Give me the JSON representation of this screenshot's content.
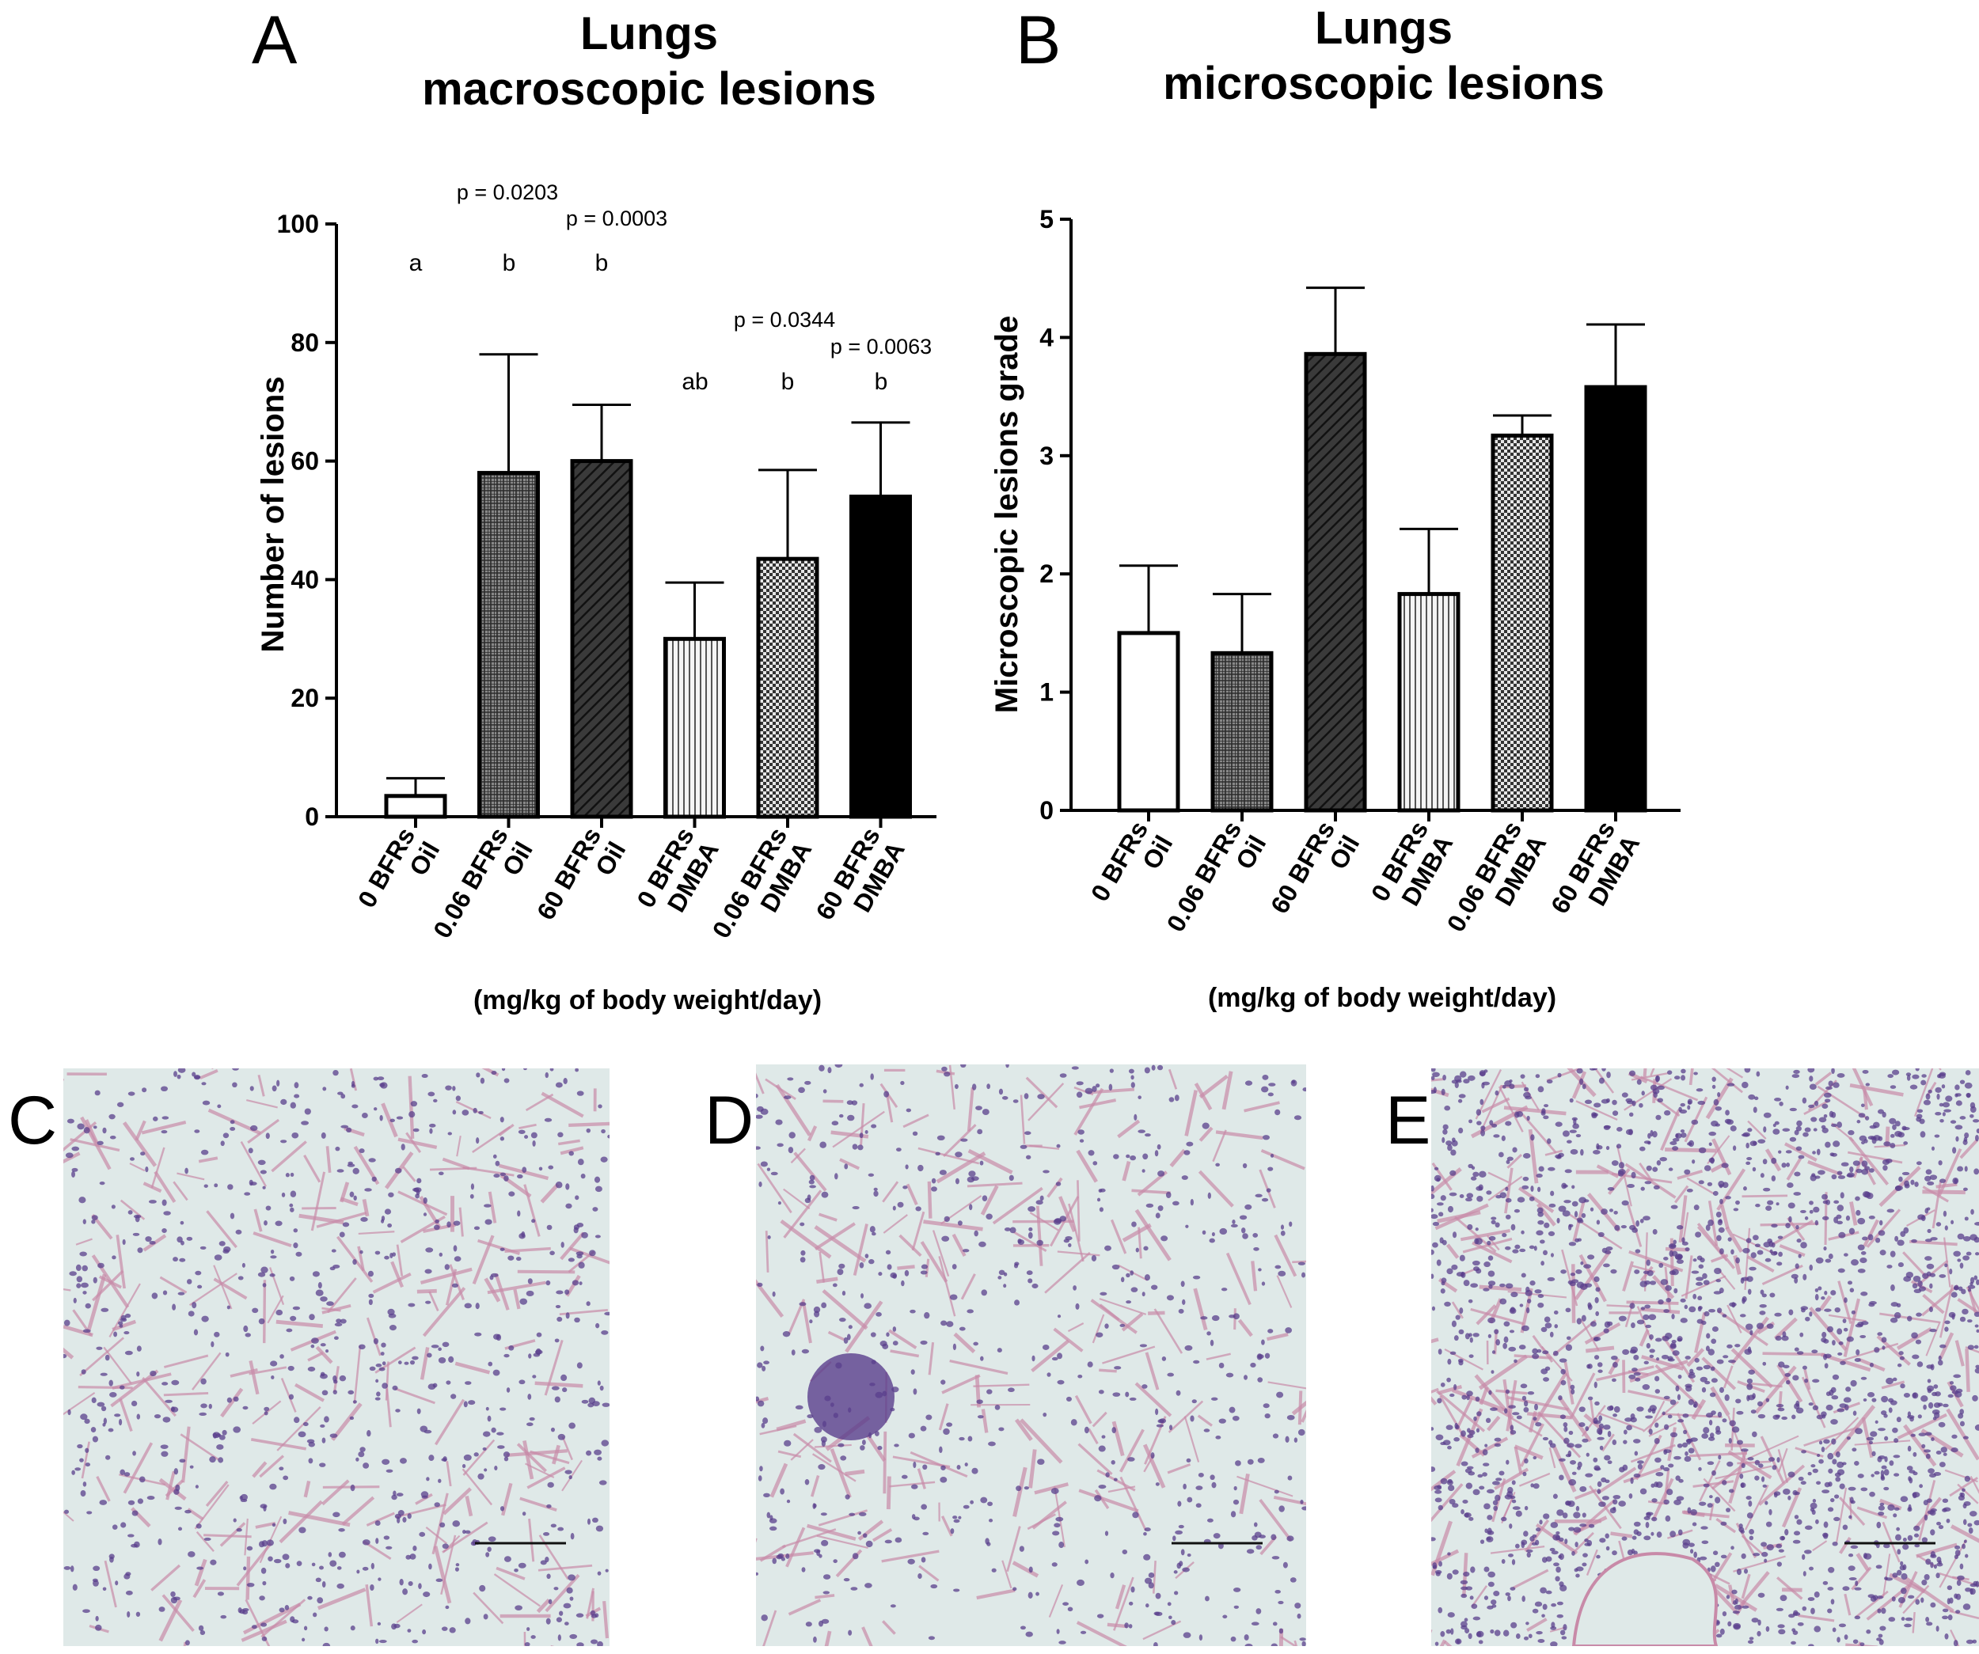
{
  "chart_data": [
    {
      "panel": "A",
      "type": "bar",
      "title": "Lungs\nmacroscopic lesions",
      "ylabel": "Number of lesions",
      "xlabel": "(mg/kg of body weight/day)",
      "ylim": [
        0,
        100
      ],
      "yticks": [
        0,
        20,
        40,
        60,
        80,
        100
      ],
      "categories": [
        "0 BFRs\nOil",
        "0.06 BFRs\nOil",
        "60 BFRs\nOil",
        "0 BFRs\nDMBA",
        "0.06 BFRs\nDMBA",
        "60 BFRs\nDMBA"
      ],
      "values": [
        3.5,
        58,
        60,
        30,
        43.5,
        54
      ],
      "errors": [
        3,
        20,
        9.5,
        9.5,
        15,
        12.5
      ],
      "patterns": [
        "white",
        "grid",
        "diagonal",
        "vertical",
        "checker",
        "black"
      ],
      "significance_letters": [
        "a",
        "b",
        "b",
        "ab",
        "b",
        "b"
      ],
      "p_values": [
        "p = 0.0203",
        "p = 0.0003",
        "p = 0.0344",
        "p = 0.0063"
      ],
      "grid": false
    },
    {
      "panel": "B",
      "type": "bar",
      "title": "Lungs\nmicroscopic lesions",
      "ylabel": "Microscopic lesions grade",
      "xlabel": "(mg/kg of body weight/day)",
      "ylim": [
        0,
        5
      ],
      "yticks": [
        0,
        1,
        2,
        3,
        4,
        5
      ],
      "categories": [
        "0 BFRs\nOil",
        "0.06 BFRs\nOil",
        "60 BFRs\nOil",
        "0 BFRs\nDMBA",
        "0.06 BFRs\nDMBA",
        "60 BFRs\nDMBA"
      ],
      "values": [
        1.5,
        1.33,
        3.86,
        1.83,
        3.17,
        3.58
      ],
      "errors": [
        0.57,
        0.5,
        0.56,
        0.55,
        0.17,
        0.53
      ],
      "patterns": [
        "white",
        "grid",
        "diagonal",
        "vertical",
        "checker",
        "black"
      ],
      "grid": false
    }
  ],
  "micrographs": [
    {
      "label": "C",
      "description_icon": "normal-lung-tissue-icon"
    },
    {
      "label": "D",
      "description_icon": "lung-tissue-with-lymphoid-nodule-icon"
    },
    {
      "label": "E",
      "description_icon": "dense-lung-lesion-icon"
    }
  ],
  "colors": {
    "ink": "#000000",
    "bar_dark": "#333333",
    "tissue_bg": "#dfe9e8",
    "tissue_cell": "#5a3f8c",
    "tissue_pink": "#c88aa8"
  }
}
